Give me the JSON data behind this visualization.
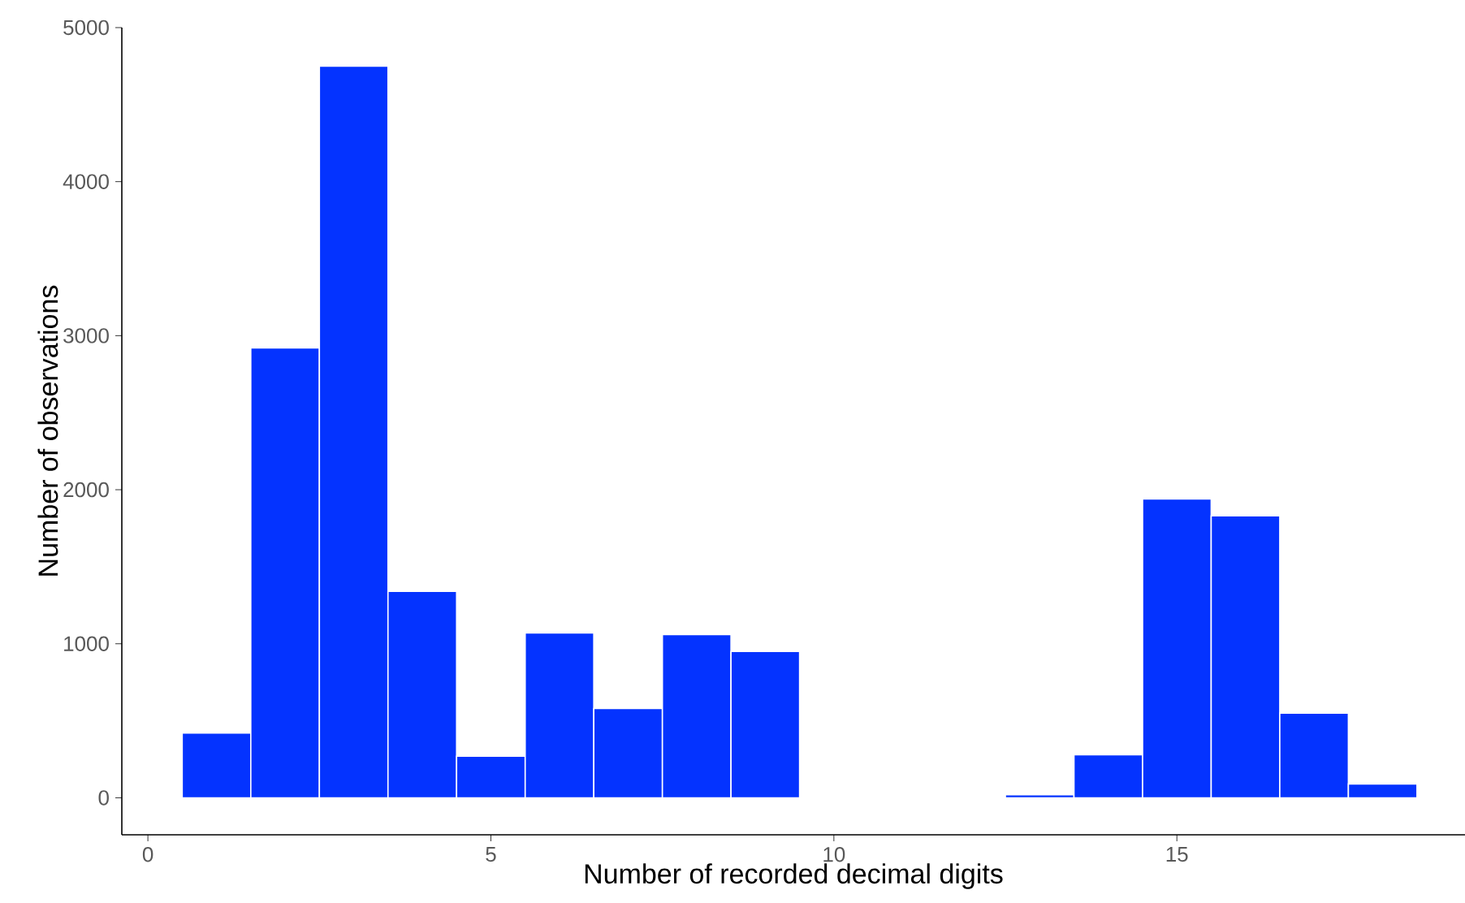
{
  "chart_data": {
    "type": "histogram",
    "xlabel": "Number of recorded decimal digits",
    "ylabel": "Number of observations",
    "bins": [
      0.5,
      1.5,
      2.5,
      3.5,
      4.5,
      5.5,
      6.5,
      7.5,
      8.5,
      9.5,
      10.5,
      11.5,
      12.5,
      13.5,
      14.5,
      15.5,
      16.5,
      17.5,
      18.5
    ],
    "values": [
      420,
      2920,
      4750,
      1340,
      270,
      1070,
      580,
      1060,
      950,
      0,
      0,
      0,
      20,
      280,
      1940,
      1830,
      550,
      90
    ],
    "color": "#0433ff",
    "xlim": [
      -0.38,
      19.2
    ],
    "ylim": [
      -240,
      5000
    ],
    "xticks": [
      0,
      5,
      10,
      15
    ],
    "yticks": [
      0,
      1000,
      2000,
      3000,
      4000,
      5000
    ],
    "grid": false
  }
}
